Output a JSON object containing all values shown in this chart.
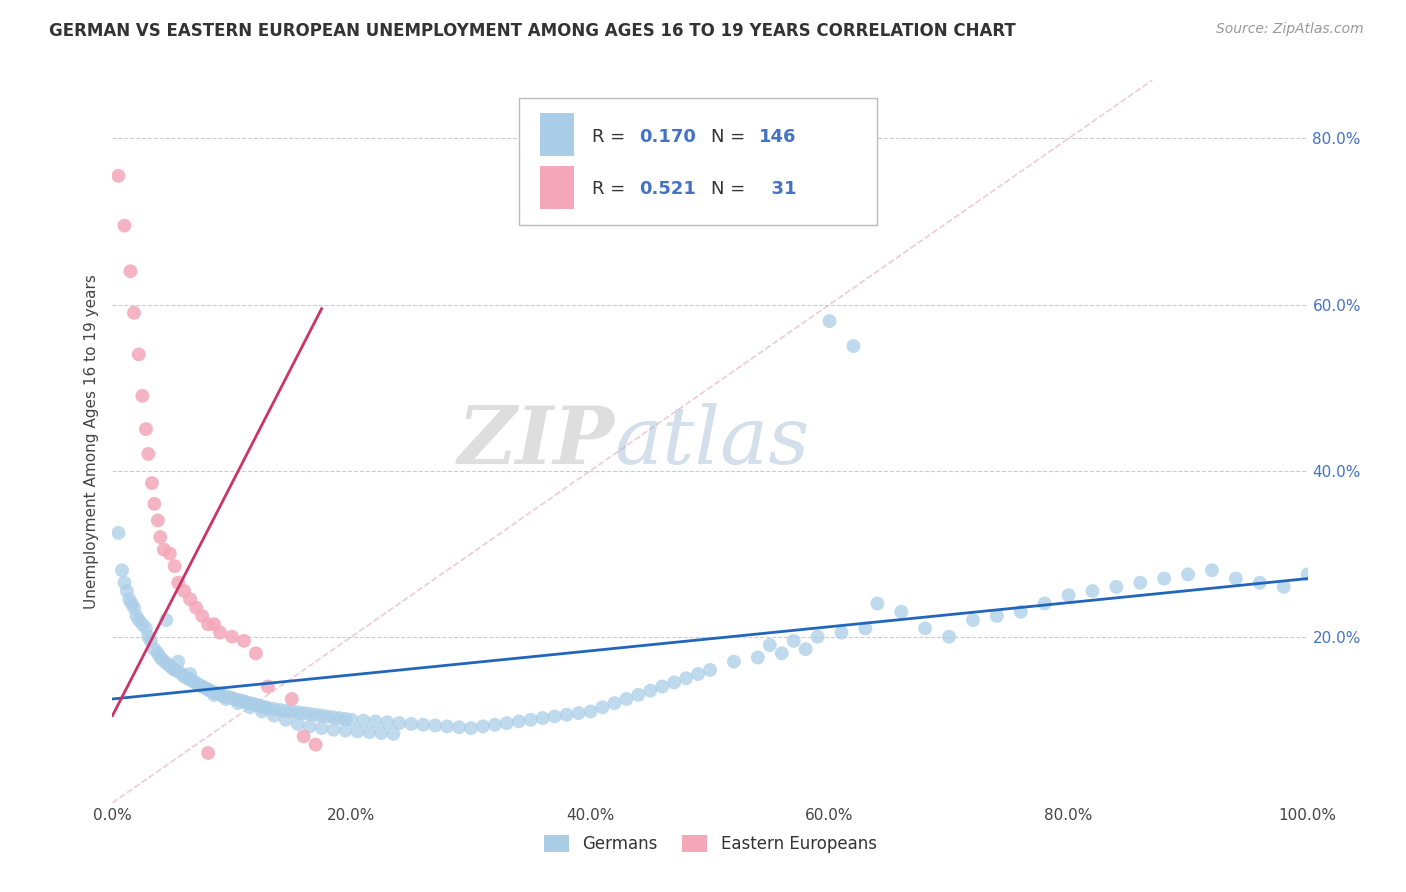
{
  "title": "GERMAN VS EASTERN EUROPEAN UNEMPLOYMENT AMONG AGES 16 TO 19 YEARS CORRELATION CHART",
  "source": "Source: ZipAtlas.com",
  "ylabel": "Unemployment Among Ages 16 to 19 years",
  "xlim": [
    0.0,
    1.0
  ],
  "ylim": [
    0.0,
    0.87
  ],
  "xticks": [
    0.0,
    0.2,
    0.4,
    0.6,
    0.8,
    1.0
  ],
  "xtick_labels": [
    "0.0%",
    "20.0%",
    "40.0%",
    "60.0%",
    "80.0%",
    "100.0%"
  ],
  "right_ytick_positions": [
    0.2,
    0.4,
    0.6,
    0.8
  ],
  "right_ytick_labels": [
    "20.0%",
    "40.0%",
    "60.0%",
    "80.0%"
  ],
  "german_color": "#aacde8",
  "eastern_color": "#f4a7b9",
  "german_line_color": "#2266bb",
  "eastern_line_color": "#cc3366",
  "watermark_zip": "ZIP",
  "watermark_atlas": "atlas",
  "R_german": 0.17,
  "N_german": 146,
  "R_eastern": 0.521,
  "N_eastern": 31,
  "german_scatter_x": [
    0.005,
    0.008,
    0.01,
    0.012,
    0.014,
    0.016,
    0.018,
    0.02,
    0.022,
    0.025,
    0.028,
    0.03,
    0.032,
    0.035,
    0.038,
    0.04,
    0.042,
    0.045,
    0.048,
    0.05,
    0.052,
    0.055,
    0.058,
    0.06,
    0.063,
    0.065,
    0.068,
    0.07,
    0.072,
    0.075,
    0.078,
    0.08,
    0.082,
    0.085,
    0.088,
    0.09,
    0.092,
    0.095,
    0.098,
    0.1,
    0.102,
    0.105,
    0.108,
    0.11,
    0.112,
    0.115,
    0.118,
    0.12,
    0.122,
    0.125,
    0.128,
    0.13,
    0.135,
    0.14,
    0.145,
    0.15,
    0.155,
    0.16,
    0.165,
    0.17,
    0.175,
    0.18,
    0.185,
    0.19,
    0.195,
    0.2,
    0.21,
    0.22,
    0.23,
    0.24,
    0.25,
    0.26,
    0.27,
    0.28,
    0.29,
    0.3,
    0.31,
    0.32,
    0.33,
    0.34,
    0.35,
    0.36,
    0.37,
    0.38,
    0.39,
    0.4,
    0.41,
    0.42,
    0.43,
    0.44,
    0.45,
    0.46,
    0.47,
    0.48,
    0.49,
    0.5,
    0.52,
    0.54,
    0.56,
    0.58,
    0.6,
    0.62,
    0.64,
    0.66,
    0.68,
    0.7,
    0.72,
    0.74,
    0.76,
    0.78,
    0.8,
    0.82,
    0.84,
    0.86,
    0.88,
    0.9,
    0.92,
    0.94,
    0.96,
    0.98,
    1.0,
    0.55,
    0.57,
    0.59,
    0.61,
    0.63,
    0.045,
    0.055,
    0.065,
    0.075,
    0.085,
    0.095,
    0.105,
    0.115,
    0.125,
    0.135,
    0.145,
    0.155,
    0.165,
    0.175,
    0.185,
    0.195,
    0.205,
    0.215,
    0.225,
    0.235
  ],
  "german_scatter_y": [
    0.325,
    0.28,
    0.265,
    0.255,
    0.245,
    0.24,
    0.235,
    0.225,
    0.22,
    0.215,
    0.21,
    0.2,
    0.195,
    0.185,
    0.18,
    0.175,
    0.172,
    0.168,
    0.165,
    0.162,
    0.16,
    0.158,
    0.155,
    0.152,
    0.15,
    0.148,
    0.146,
    0.144,
    0.142,
    0.14,
    0.138,
    0.136,
    0.135,
    0.133,
    0.132,
    0.13,
    0.129,
    0.128,
    0.127,
    0.126,
    0.125,
    0.124,
    0.123,
    0.122,
    0.121,
    0.12,
    0.119,
    0.118,
    0.117,
    0.116,
    0.115,
    0.114,
    0.113,
    0.112,
    0.111,
    0.11,
    0.109,
    0.108,
    0.107,
    0.106,
    0.105,
    0.104,
    0.103,
    0.102,
    0.101,
    0.1,
    0.099,
    0.098,
    0.097,
    0.096,
    0.095,
    0.094,
    0.093,
    0.092,
    0.091,
    0.09,
    0.092,
    0.094,
    0.096,
    0.098,
    0.1,
    0.102,
    0.104,
    0.106,
    0.108,
    0.11,
    0.115,
    0.12,
    0.125,
    0.13,
    0.135,
    0.14,
    0.145,
    0.15,
    0.155,
    0.16,
    0.17,
    0.175,
    0.18,
    0.185,
    0.58,
    0.55,
    0.24,
    0.23,
    0.21,
    0.2,
    0.22,
    0.225,
    0.23,
    0.24,
    0.25,
    0.255,
    0.26,
    0.265,
    0.27,
    0.275,
    0.28,
    0.27,
    0.265,
    0.26,
    0.275,
    0.19,
    0.195,
    0.2,
    0.205,
    0.21,
    0.22,
    0.17,
    0.155,
    0.14,
    0.13,
    0.125,
    0.12,
    0.115,
    0.11,
    0.105,
    0.1,
    0.095,
    0.092,
    0.09,
    0.088,
    0.087,
    0.086,
    0.085,
    0.084,
    0.083
  ],
  "eastern_scatter_x": [
    0.005,
    0.01,
    0.015,
    0.018,
    0.022,
    0.025,
    0.028,
    0.03,
    0.033,
    0.035,
    0.038,
    0.04,
    0.043,
    0.048,
    0.052,
    0.055,
    0.06,
    0.065,
    0.07,
    0.075,
    0.08,
    0.085,
    0.09,
    0.1,
    0.11,
    0.12,
    0.13,
    0.15,
    0.16,
    0.17,
    0.08
  ],
  "eastern_scatter_y": [
    0.755,
    0.695,
    0.64,
    0.59,
    0.54,
    0.49,
    0.45,
    0.42,
    0.385,
    0.36,
    0.34,
    0.32,
    0.305,
    0.3,
    0.285,
    0.265,
    0.255,
    0.245,
    0.235,
    0.225,
    0.215,
    0.215,
    0.205,
    0.2,
    0.195,
    0.18,
    0.14,
    0.125,
    0.08,
    0.07,
    0.06
  ],
  "german_line_x": [
    0.0,
    1.0
  ],
  "german_line_y": [
    0.125,
    0.27
  ],
  "eastern_line_x": [
    0.0,
    0.175
  ],
  "eastern_line_y": [
    0.105,
    0.595
  ],
  "diag_line_x": [
    0.0,
    0.87
  ],
  "diag_line_y": [
    0.0,
    0.87
  ]
}
